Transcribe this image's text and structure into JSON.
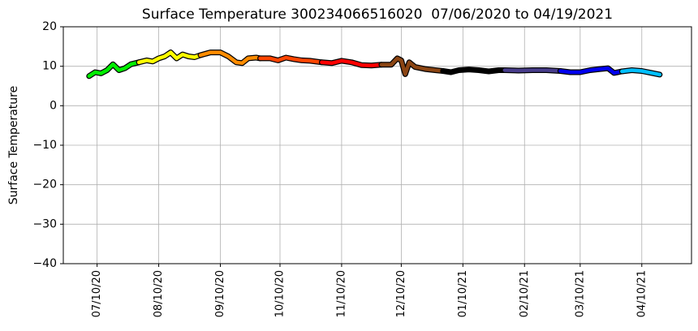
{
  "chart_data": {
    "type": "line",
    "title": "Surface Temperature 300234066516020  07/06/2020 to 04/19/2021",
    "ylabel": "Surface Temperature",
    "xlim": [
      "2020-06-23",
      "2021-05-05"
    ],
    "xticks": [
      {
        "value": "2020-07-10",
        "label": "07/10/20"
      },
      {
        "value": "2020-08-10",
        "label": "08/10/20"
      },
      {
        "value": "2020-09-10",
        "label": "09/10/20"
      },
      {
        "value": "2020-10-10",
        "label": "10/10/20"
      },
      {
        "value": "2020-11-10",
        "label": "11/10/20"
      },
      {
        "value": "2020-12-10",
        "label": "12/10/20"
      },
      {
        "value": "2021-01-10",
        "label": "01/10/21"
      },
      {
        "value": "2021-02-10",
        "label": "02/10/21"
      },
      {
        "value": "2021-03-10",
        "label": "03/10/21"
      },
      {
        "value": "2021-04-10",
        "label": "04/10/21"
      }
    ],
    "ylim": [
      -40,
      20
    ],
    "yticks": [
      {
        "value": -40,
        "label": "−40"
      },
      {
        "value": -30,
        "label": "−30"
      },
      {
        "value": -20,
        "label": "−20"
      },
      {
        "value": -10,
        "label": "−10"
      },
      0,
      10,
      20
    ],
    "grid": true,
    "series": [
      {
        "color": "#00ee00",
        "x": [
          "2020-07-06",
          "2020-07-09",
          "2020-07-12",
          "2020-07-15",
          "2020-07-18",
          "2020-07-21",
          "2020-07-24",
          "2020-07-27",
          "2020-07-31"
        ],
        "values": [
          7.5,
          8.5,
          8.2,
          9,
          10.5,
          9,
          9.5,
          10.5,
          11
        ]
      },
      {
        "color": "#ffff00",
        "x": [
          "2020-07-31",
          "2020-08-04",
          "2020-08-07",
          "2020-08-10",
          "2020-08-13",
          "2020-08-16",
          "2020-08-19",
          "2020-08-22",
          "2020-08-25",
          "2020-08-28",
          "2020-08-31"
        ],
        "values": [
          11,
          11.5,
          11.2,
          12,
          12.5,
          13.5,
          12,
          13,
          12.5,
          12.3,
          12.8
        ]
      },
      {
        "color": "#ff8c00",
        "x": [
          "2020-08-31",
          "2020-09-05",
          "2020-09-10",
          "2020-09-14",
          "2020-09-18",
          "2020-09-21",
          "2020-09-24",
          "2020-09-28",
          "2020-09-30"
        ],
        "values": [
          12.8,
          13.5,
          13.5,
          12.5,
          11,
          10.8,
          12,
          12.2,
          12
        ]
      },
      {
        "color": "#ff4500",
        "x": [
          "2020-09-30",
          "2020-10-05",
          "2020-10-09",
          "2020-10-13",
          "2020-10-17",
          "2020-10-21",
          "2020-10-25",
          "2020-10-31"
        ],
        "values": [
          12,
          12,
          11.5,
          12.2,
          11.8,
          11.5,
          11.4,
          11
        ]
      },
      {
        "color": "#ff0000",
        "x": [
          "2020-10-31",
          "2020-11-05",
          "2020-11-10",
          "2020-11-15",
          "2020-11-20",
          "2020-11-25",
          "2020-11-30"
        ],
        "values": [
          11,
          10.8,
          11.4,
          11,
          10.3,
          10.2,
          10.4
        ]
      },
      {
        "color": "#8b4513",
        "x": [
          "2020-11-30",
          "2020-12-05",
          "2020-12-08",
          "2020-12-10",
          "2020-12-12",
          "2020-12-14",
          "2020-12-17",
          "2020-12-22",
          "2020-12-27",
          "2020-12-31"
        ],
        "values": [
          10.4,
          10.4,
          12,
          11.5,
          8,
          11,
          9.8,
          9.3,
          9,
          8.8
        ]
      },
      {
        "color": "#000000",
        "x": [
          "2020-12-31",
          "2021-01-04",
          "2021-01-08",
          "2021-01-13",
          "2021-01-18",
          "2021-01-23",
          "2021-01-28",
          "2021-01-31"
        ],
        "values": [
          8.8,
          8.5,
          9,
          9.2,
          9,
          8.7,
          9,
          9
        ]
      },
      {
        "color": "#483d8b",
        "x": [
          "2021-01-31",
          "2021-02-07",
          "2021-02-14",
          "2021-02-21",
          "2021-02-28"
        ],
        "values": [
          9,
          8.9,
          9,
          9,
          8.8
        ]
      },
      {
        "color": "#0000ee",
        "x": [
          "2021-02-28",
          "2021-03-05",
          "2021-03-10",
          "2021-03-15",
          "2021-03-20",
          "2021-03-24",
          "2021-03-27",
          "2021-03-31"
        ],
        "values": [
          8.8,
          8.5,
          8.5,
          9,
          9.3,
          9.5,
          8.3,
          8.7
        ]
      },
      {
        "color": "#00bfff",
        "x": [
          "2021-03-31",
          "2021-04-05",
          "2021-04-10",
          "2021-04-15",
          "2021-04-19"
        ],
        "values": [
          8.7,
          9,
          8.8,
          8.3,
          7.9
        ]
      }
    ]
  }
}
